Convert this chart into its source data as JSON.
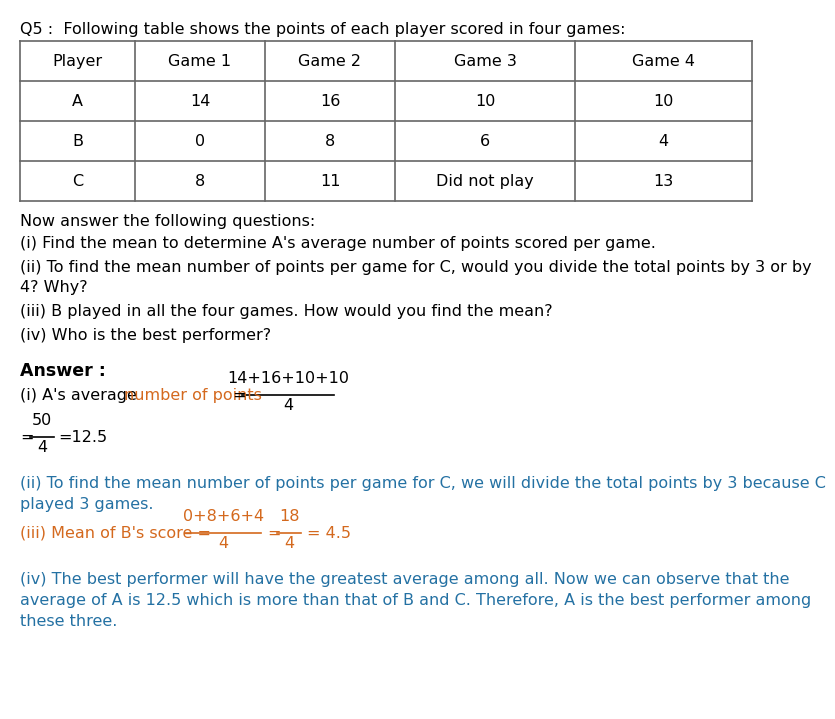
{
  "title_text": "Q5 :  Following table shows the points of each player scored in four games:",
  "table_headers": [
    "Player",
    "Game 1",
    "Game 2",
    "Game 3",
    "Game 4"
  ],
  "table_rows": [
    [
      "A",
      "14",
      "16",
      "10",
      "10"
    ],
    [
      "B",
      "0",
      "8",
      "6",
      "4"
    ],
    [
      "C",
      "8",
      "11",
      "Did not play",
      "13"
    ]
  ],
  "questions_intro": "Now answer the following questions:",
  "questions": [
    "(i) Find the mean to determine A's average number of points scored per game.",
    "(ii) To find the mean number of points per game for C, would you divide the total points by 3 or by\n4? Why?",
    "(iii) B played in all the four games. How would you find the mean?",
    "(iv) Who is the best performer?"
  ],
  "answer_label": "Answer :",
  "color_black": "#000000",
  "color_orange": "#d4691e",
  "color_blue": "#2471a3",
  "bg_color": "#ffffff",
  "table_border_color": "#666666"
}
